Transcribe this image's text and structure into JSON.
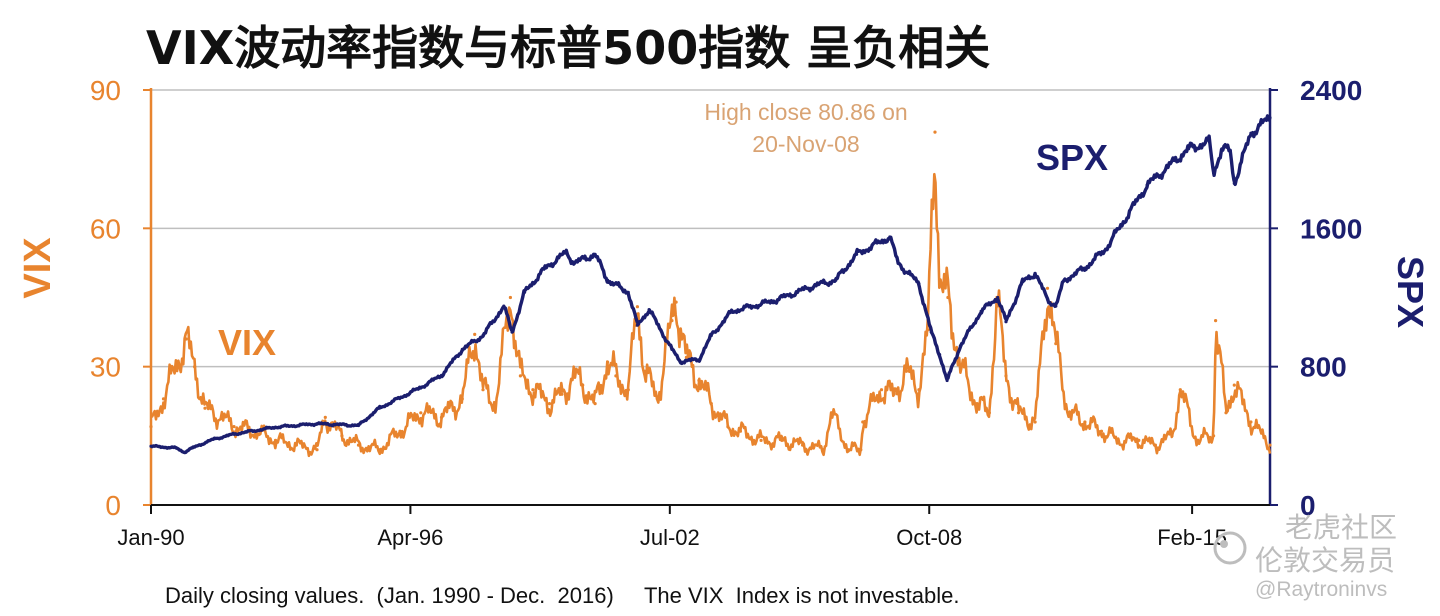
{
  "colors": {
    "vix": "#e8842e",
    "spx": "#1b1e6e",
    "text": "#111111",
    "watermark": "#bdbdbd"
  },
  "chart_data": {
    "type": "line",
    "title": "VIX波动率指数与标普500指数 呈负相关",
    "xlabel": "",
    "x_ticks": [
      "Jan-90",
      "Apr-96",
      "Jul-02",
      "Oct-08",
      "Feb-15"
    ],
    "x_range": [
      1990.0,
      2016.96
    ],
    "left_axis": {
      "label": "VIX",
      "ticks": [
        "0",
        "30",
        "60",
        "90"
      ],
      "ylim": [
        0,
        90
      ]
    },
    "right_axis": {
      "label": "SPX",
      "ticks": [
        "0",
        "800",
        "1600",
        "2400"
      ],
      "ylim": [
        0,
        2400
      ]
    },
    "grid": "horizontal",
    "series": [
      {
        "name": "VIX",
        "axis": "left",
        "x": [
          1990.0,
          1990.3,
          1990.6,
          1990.85,
          1991.05,
          1991.3,
          1991.7,
          1992.0,
          1992.5,
          1993.0,
          1993.5,
          1994.0,
          1994.2,
          1994.6,
          1995.0,
          1995.5,
          1996.0,
          1996.5,
          1997.0,
          1997.5,
          1997.8,
          1998.0,
          1998.3,
          1998.66,
          1998.9,
          1999.2,
          1999.6,
          1999.9,
          2000.2,
          2000.4,
          2000.7,
          2001.0,
          2001.2,
          2001.5,
          2001.72,
          2001.9,
          2002.2,
          2002.55,
          2002.65,
          2002.9,
          2003.2,
          2003.5,
          2003.9,
          2004.2,
          2004.7,
          2005.2,
          2005.7,
          2006.2,
          2006.4,
          2006.8,
          2007.1,
          2007.15,
          2007.6,
          2007.9,
          2008.2,
          2008.5,
          2008.72,
          2008.89,
          2009.0,
          2009.2,
          2009.5,
          2009.9,
          2010.2,
          2010.38,
          2010.6,
          2010.9,
          2011.3,
          2011.6,
          2011.8,
          2012.1,
          2012.5,
          2012.9,
          2013.3,
          2013.8,
          2014.2,
          2014.6,
          2014.8,
          2015.2,
          2015.6,
          2015.65,
          2015.9,
          2016.1,
          2016.5,
          2016.96
        ],
        "values": [
          17,
          23,
          30,
          36,
          30,
          21,
          19,
          17,
          16,
          14,
          13,
          12,
          19,
          15,
          13,
          12,
          16,
          20,
          19,
          23,
          37,
          25,
          22,
          45,
          28,
          25,
          22,
          24,
          28,
          26,
          22,
          31,
          28,
          25,
          43,
          29,
          23,
          40,
          44,
          32,
          27,
          22,
          17,
          16,
          14,
          14,
          13,
          12,
          20,
          12,
          12,
          18,
          25,
          24,
          29,
          25,
          38,
          80.86,
          48,
          45,
          30,
          22,
          20,
          45,
          28,
          20,
          18,
          47,
          35,
          20,
          18,
          16,
          14,
          14,
          13,
          15,
          25,
          14,
          15,
          40,
          20,
          26,
          18,
          13
        ]
      },
      {
        "name": "SPX",
        "axis": "right",
        "x": [
          1990.0,
          1990.6,
          1990.8,
          1991.0,
          1991.5,
          1992.0,
          1993.0,
          1994.0,
          1995.0,
          1995.5,
          1996.0,
          1996.5,
          1997.0,
          1997.5,
          1998.0,
          1998.5,
          1998.7,
          1999.0,
          1999.5,
          2000.0,
          2000.2,
          2000.7,
          2001.0,
          2001.5,
          2001.72,
          2002.0,
          2002.55,
          2002.75,
          2003.2,
          2003.5,
          2004.0,
          2005.0,
          2006.0,
          2006.5,
          2007.0,
          2007.8,
          2008.0,
          2008.5,
          2008.8,
          2009.0,
          2009.18,
          2009.5,
          2010.0,
          2010.4,
          2010.6,
          2011.0,
          2011.3,
          2011.6,
          2011.8,
          2012.0,
          2012.5,
          2013.0,
          2014.0,
          2015.0,
          2015.5,
          2015.6,
          2015.8,
          2016.0,
          2016.1,
          2016.5,
          2016.96
        ],
        "values": [
          340,
          330,
          305,
          330,
          380,
          410,
          450,
          470,
          460,
          560,
          620,
          680,
          750,
          900,
          980,
          1150,
          1000,
          1230,
          1370,
          1460,
          1400,
          1450,
          1300,
          1230,
          1040,
          1130,
          900,
          830,
          840,
          980,
          1120,
          1180,
          1270,
          1300,
          1450,
          1550,
          1400,
          1280,
          1000,
          870,
          720,
          920,
          1120,
          1200,
          1060,
          1290,
          1340,
          1190,
          1150,
          1300,
          1370,
          1480,
          1850,
          2060,
          2100,
          1920,
          2060,
          2050,
          1860,
          2150,
          2240
        ]
      }
    ],
    "annotations": [
      {
        "text_line1": "High close 80.86 on",
        "text_line2": "20-Nov-08"
      },
      {
        "text": "VIX"
      },
      {
        "text": "SPX"
      }
    ],
    "footnote": "Daily closing values.  (Jan. 1990 - Dec.  2016)     The VIX  Index is not investable.",
    "watermark": {
      "line1": "老虎社区",
      "line2": "伦敦交易员",
      "line3": "@Raytroninvs"
    }
  }
}
